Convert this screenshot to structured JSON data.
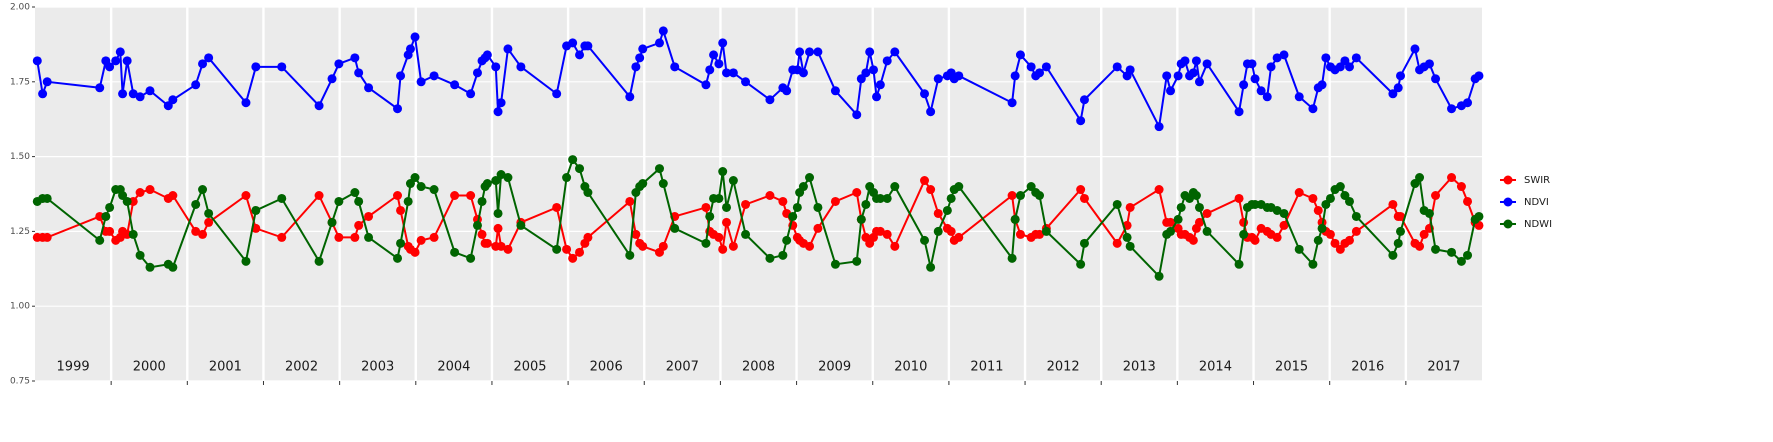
{
  "chart_data": {
    "type": "line",
    "xlim": [
      1999,
      2018
    ],
    "xticks": [
      2000,
      2001,
      2002,
      2003,
      2004,
      2005,
      2006,
      2007,
      2008,
      2009,
      2010,
      2011,
      2012,
      2013,
      2014,
      2015,
      2016,
      2017
    ],
    "year_labels": [
      "1999",
      "2000",
      "2001",
      "2002",
      "2003",
      "2004",
      "2005",
      "2006",
      "2007",
      "2008",
      "2009",
      "2010",
      "2011",
      "2012",
      "2013",
      "2014",
      "2015",
      "2016",
      "2017"
    ],
    "ylim": [
      0.75,
      2.0
    ],
    "yticks": [
      0.75,
      {
        "value": 1.0,
        "label": "1.00"
      },
      1.25,
      {
        "value": 1.5,
        "label": "1.50"
      },
      1.75,
      {
        "value": 2.0,
        "label": "2.00"
      }
    ],
    "grid": true,
    "legend": "right",
    "x": [
      1999.03,
      1999.1,
      1999.16,
      1999.85,
      1999.93,
      1999.98,
      2000.06,
      2000.12,
      2000.15,
      2000.21,
      2000.29,
      2000.38,
      2000.51,
      2000.75,
      2000.81,
      2001.11,
      2001.2,
      2001.28,
      2001.77,
      2001.9,
      2002.24,
      2002.73,
      2002.9,
      2002.99,
      2003.2,
      2003.25,
      2003.38,
      2003.76,
      2003.8,
      2003.9,
      2003.93,
      2003.99,
      2004.07,
      2004.24,
      2004.51,
      2004.72,
      2004.81,
      2004.87,
      2004.91,
      2004.94,
      2005.05,
      2005.08,
      2005.12,
      2005.21,
      2005.38,
      2005.85,
      2005.98,
      2006.06,
      2006.15,
      2006.22,
      2006.26,
      2006.81,
      2006.89,
      2006.94,
      2006.98,
      2007.2,
      2007.25,
      2007.4,
      2007.81,
      2007.86,
      2007.91,
      2007.98,
      2008.03,
      2008.08,
      2008.17,
      2008.33,
      2008.65,
      2008.82,
      2008.87,
      2008.95,
      2009.01,
      2009.04,
      2009.09,
      2009.17,
      2009.28,
      2009.51,
      2009.79,
      2009.85,
      2009.91,
      2009.96,
      2010.01,
      2010.05,
      2010.1,
      2010.19,
      2010.29,
      2010.68,
      2010.76,
      2010.86,
      2010.98,
      2011.03,
      2011.07,
      2011.13,
      2011.83,
      2011.87,
      2011.94,
      2012.08,
      2012.14,
      2012.19,
      2012.28,
      2012.73,
      2012.78,
      2013.21,
      2013.34,
      2013.38,
      2013.76,
      2013.86,
      2013.91,
      2014.01,
      2014.05,
      2014.1,
      2014.16,
      2014.21,
      2014.25,
      2014.29,
      2014.39,
      2014.81,
      2014.87,
      2014.92,
      2014.98,
      2015.02,
      2015.1,
      2015.18,
      2015.23,
      2015.31,
      2015.4,
      2015.6,
      2015.78,
      2015.85,
      2015.9,
      2015.95,
      2016.01,
      2016.07,
      2016.14,
      2016.2,
      2016.26,
      2016.35,
      2016.83,
      2016.9,
      2016.93,
      2017.12,
      2017.18,
      2017.24,
      2017.31,
      2017.39,
      2017.6,
      2017.73,
      2017.81,
      2017.91,
      2017.96
    ],
    "series": [
      {
        "name": "SWIR",
        "color": "#ff0000",
        "values": [
          1.23,
          1.23,
          1.23,
          1.3,
          1.25,
          1.25,
          1.22,
          1.23,
          1.25,
          1.24,
          1.35,
          1.38,
          1.39,
          1.36,
          1.37,
          1.25,
          1.24,
          1.28,
          1.37,
          1.26,
          1.23,
          1.37,
          1.28,
          1.23,
          1.23,
          1.27,
          1.3,
          1.37,
          1.32,
          1.2,
          1.19,
          1.18,
          1.22,
          1.23,
          1.37,
          1.37,
          1.29,
          1.24,
          1.21,
          1.21,
          1.2,
          1.26,
          1.2,
          1.19,
          1.28,
          1.33,
          1.19,
          1.16,
          1.18,
          1.21,
          1.23,
          1.35,
          1.24,
          1.21,
          1.2,
          1.18,
          1.2,
          1.3,
          1.33,
          1.25,
          1.24,
          1.23,
          1.19,
          1.28,
          1.2,
          1.34,
          1.37,
          1.35,
          1.31,
          1.27,
          1.23,
          1.22,
          1.21,
          1.2,
          1.26,
          1.35,
          1.38,
          1.29,
          1.23,
          1.21,
          1.23,
          1.25,
          1.25,
          1.24,
          1.2,
          1.42,
          1.39,
          1.31,
          1.26,
          1.25,
          1.22,
          1.23,
          1.37,
          1.29,
          1.24,
          1.23,
          1.24,
          1.24,
          1.26,
          1.39,
          1.36,
          1.21,
          1.27,
          1.33,
          1.39,
          1.28,
          1.28,
          1.26,
          1.24,
          1.24,
          1.23,
          1.22,
          1.26,
          1.28,
          1.31,
          1.36,
          1.28,
          1.23,
          1.23,
          1.22,
          1.26,
          1.25,
          1.24,
          1.23,
          1.27,
          1.38,
          1.36,
          1.32,
          1.28,
          1.25,
          1.24,
          1.21,
          1.19,
          1.21,
          1.22,
          1.25,
          1.34,
          1.3,
          1.3,
          1.21,
          1.2,
          1.24,
          1.26,
          1.37,
          1.43,
          1.4,
          1.35,
          1.28,
          1.27
        ]
      },
      {
        "name": "NDVI",
        "color": "#0000ff",
        "values": [
          1.82,
          1.71,
          1.75,
          1.73,
          1.82,
          1.8,
          1.82,
          1.85,
          1.71,
          1.82,
          1.71,
          1.7,
          1.72,
          1.67,
          1.69,
          1.74,
          1.81,
          1.83,
          1.68,
          1.8,
          1.8,
          1.67,
          1.76,
          1.81,
          1.83,
          1.78,
          1.73,
          1.66,
          1.77,
          1.84,
          1.86,
          1.9,
          1.75,
          1.77,
          1.74,
          1.71,
          1.78,
          1.82,
          1.83,
          1.84,
          1.8,
          1.65,
          1.68,
          1.86,
          1.8,
          1.71,
          1.87,
          1.88,
          1.84,
          1.87,
          1.87,
          1.7,
          1.8,
          1.83,
          1.86,
          1.88,
          1.92,
          1.8,
          1.74,
          1.79,
          1.84,
          1.81,
          1.88,
          1.78,
          1.78,
          1.75,
          1.69,
          1.73,
          1.72,
          1.79,
          1.79,
          1.85,
          1.78,
          1.85,
          1.85,
          1.72,
          1.64,
          1.76,
          1.78,
          1.85,
          1.79,
          1.7,
          1.74,
          1.82,
          1.85,
          1.71,
          1.65,
          1.76,
          1.77,
          1.78,
          1.76,
          1.77,
          1.68,
          1.77,
          1.84,
          1.8,
          1.77,
          1.78,
          1.8,
          1.62,
          1.69,
          1.8,
          1.77,
          1.79,
          1.6,
          1.77,
          1.72,
          1.77,
          1.81,
          1.82,
          1.77,
          1.78,
          1.82,
          1.75,
          1.81,
          1.65,
          1.74,
          1.81,
          1.81,
          1.76,
          1.72,
          1.7,
          1.8,
          1.83,
          1.84,
          1.7,
          1.66,
          1.73,
          1.74,
          1.83,
          1.8,
          1.79,
          1.8,
          1.82,
          1.8,
          1.83,
          1.71,
          1.73,
          1.77,
          1.86,
          1.79,
          1.8,
          1.81,
          1.76,
          1.66,
          1.67,
          1.68,
          1.76,
          1.77
        ]
      },
      {
        "name": "NDWI",
        "color": "#006400",
        "values": [
          1.35,
          1.36,
          1.36,
          1.22,
          1.3,
          1.33,
          1.39,
          1.39,
          1.37,
          1.35,
          1.24,
          1.17,
          1.13,
          1.14,
          1.13,
          1.34,
          1.39,
          1.31,
          1.15,
          1.32,
          1.36,
          1.15,
          1.28,
          1.35,
          1.38,
          1.35,
          1.23,
          1.16,
          1.21,
          1.35,
          1.41,
          1.43,
          1.4,
          1.39,
          1.18,
          1.16,
          1.27,
          1.35,
          1.4,
          1.41,
          1.42,
          1.31,
          1.44,
          1.43,
          1.27,
          1.19,
          1.43,
          1.49,
          1.46,
          1.4,
          1.38,
          1.17,
          1.38,
          1.4,
          1.41,
          1.46,
          1.41,
          1.26,
          1.21,
          1.3,
          1.36,
          1.36,
          1.45,
          1.33,
          1.42,
          1.24,
          1.16,
          1.17,
          1.22,
          1.3,
          1.33,
          1.38,
          1.4,
          1.43,
          1.33,
          1.14,
          1.15,
          1.29,
          1.34,
          1.4,
          1.38,
          1.36,
          1.36,
          1.36,
          1.4,
          1.22,
          1.13,
          1.25,
          1.32,
          1.36,
          1.39,
          1.4,
          1.16,
          1.29,
          1.37,
          1.4,
          1.38,
          1.37,
          1.25,
          1.14,
          1.21,
          1.34,
          1.23,
          1.2,
          1.1,
          1.24,
          1.25,
          1.29,
          1.33,
          1.37,
          1.36,
          1.38,
          1.37,
          1.33,
          1.25,
          1.14,
          1.24,
          1.33,
          1.34,
          1.34,
          1.34,
          1.33,
          1.33,
          1.32,
          1.31,
          1.19,
          1.14,
          1.22,
          1.26,
          1.34,
          1.36,
          1.39,
          1.4,
          1.37,
          1.35,
          1.3,
          1.17,
          1.21,
          1.25,
          1.41,
          1.43,
          1.32,
          1.31,
          1.19,
          1.18,
          1.15,
          1.17,
          1.29,
          1.3
        ]
      }
    ]
  }
}
